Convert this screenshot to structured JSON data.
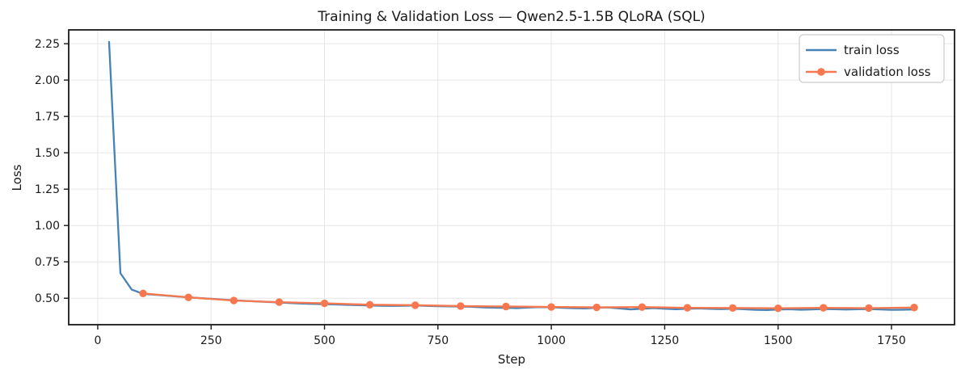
{
  "chart_data": {
    "type": "line",
    "title": "Training & Validation Loss — Qwen2.5-1.5B QLoRA (SQL)",
    "xlabel": "Step",
    "ylabel": "Loss",
    "xlim": [
      -64,
      1889
    ],
    "ylim": [
      0.318,
      2.345
    ],
    "x_ticks": [
      0,
      250,
      500,
      750,
      1000,
      1250,
      1500,
      1750
    ],
    "x_tick_labels": [
      "0",
      "250",
      "500",
      "750",
      "1000",
      "1250",
      "1500",
      "1750"
    ],
    "y_ticks": [
      0.5,
      0.75,
      1.0,
      1.25,
      1.5,
      1.75,
      2.0,
      2.25
    ],
    "y_tick_labels": [
      "0.50",
      "0.75",
      "1.00",
      "1.25",
      "1.50",
      "1.75",
      "2.00",
      "2.25"
    ],
    "grid": true,
    "legend_position": "upper right",
    "colors": {
      "train": "#4682b4",
      "validation": "#f8774e",
      "grid": "#e6e6e6",
      "spine": "#1a1a1a",
      "legend_border": "#cccccc"
    },
    "series": [
      {
        "name": "train loss",
        "color": "#4682b4",
        "marker": null,
        "x": [
          25,
          50,
          75,
          100,
          125,
          150,
          175,
          200,
          225,
          250,
          275,
          300,
          325,
          350,
          375,
          400,
          425,
          450,
          475,
          500,
          525,
          550,
          575,
          600,
          625,
          650,
          675,
          700,
          725,
          750,
          775,
          800,
          825,
          850,
          875,
          900,
          925,
          950,
          975,
          1000,
          1025,
          1050,
          1075,
          1100,
          1125,
          1150,
          1175,
          1200,
          1225,
          1250,
          1275,
          1300,
          1325,
          1350,
          1375,
          1400,
          1425,
          1450,
          1475,
          1500,
          1525,
          1550,
          1575,
          1600,
          1625,
          1650,
          1675,
          1700,
          1725,
          1750,
          1775,
          1800
        ],
        "y": [
          2.262,
          0.672,
          0.559,
          0.53,
          0.524,
          0.518,
          0.512,
          0.506,
          0.501,
          0.496,
          0.491,
          0.486,
          0.482,
          0.478,
          0.474,
          0.471,
          0.467,
          0.463,
          0.461,
          0.459,
          0.457,
          0.454,
          0.452,
          0.45,
          0.448,
          0.447,
          0.448,
          0.45,
          0.447,
          0.445,
          0.444,
          0.443,
          0.441,
          0.437,
          0.435,
          0.434,
          0.432,
          0.436,
          0.439,
          0.438,
          0.434,
          0.431,
          0.43,
          0.435,
          0.437,
          0.43,
          0.423,
          0.428,
          0.432,
          0.428,
          0.424,
          0.428,
          0.43,
          0.427,
          0.425,
          0.428,
          0.424,
          0.42,
          0.419,
          0.422,
          0.424,
          0.421,
          0.423,
          0.426,
          0.424,
          0.422,
          0.424,
          0.426,
          0.423,
          0.42,
          0.421,
          0.423
        ]
      },
      {
        "name": "validation loss",
        "color": "#f8774e",
        "marker": "circle",
        "x": [
          100,
          200,
          300,
          400,
          500,
          600,
          700,
          800,
          900,
          1000,
          1100,
          1200,
          1300,
          1400,
          1500,
          1600,
          1700,
          1800
        ],
        "y": [
          0.533,
          0.506,
          0.484,
          0.473,
          0.465,
          0.455,
          0.452,
          0.446,
          0.443,
          0.44,
          0.437,
          0.439,
          0.434,
          0.433,
          0.431,
          0.434,
          0.432,
          0.436
        ]
      }
    ]
  }
}
